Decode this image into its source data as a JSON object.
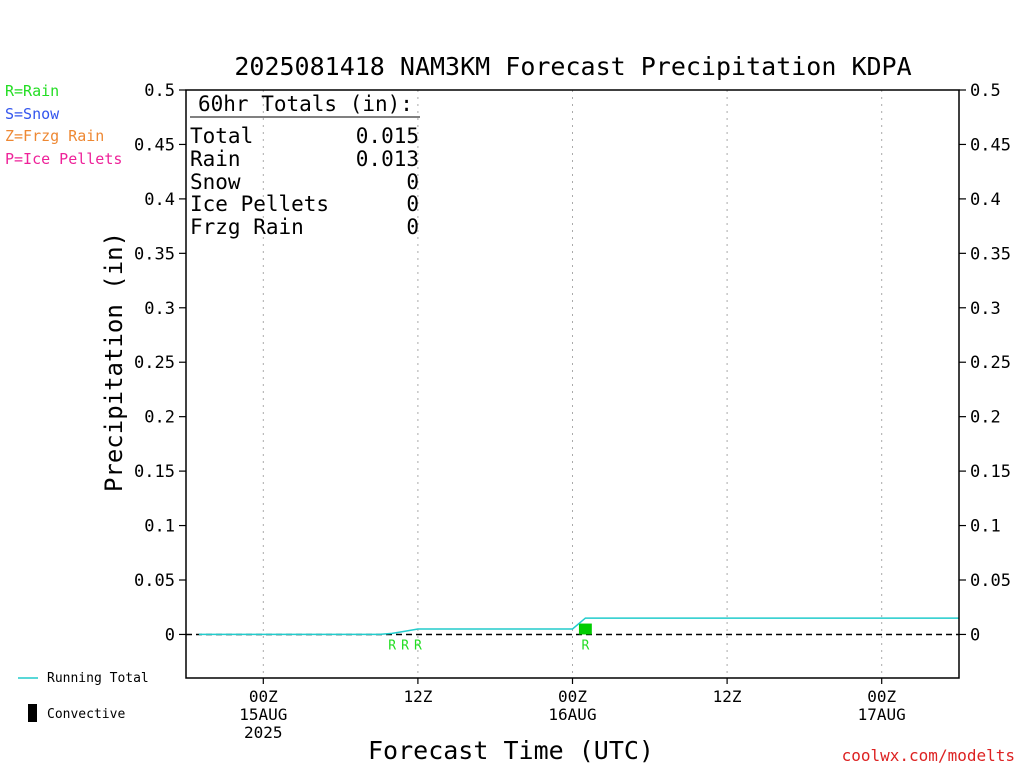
{
  "title": "2025081418 NAM3KM Forecast Precipitation KDPA",
  "legend_types": [
    {
      "label": "R=Rain",
      "color": "#22dd22"
    },
    {
      "label": "S=Snow",
      "color": "#3355ee"
    },
    {
      "label": "Z=Frzg Rain",
      "color": "#ee8833"
    },
    {
      "label": "P=Ice Pellets",
      "color": "#ee2299"
    }
  ],
  "bottom_legend": {
    "running_total": "Running Total",
    "convective": "Convective"
  },
  "totals": {
    "header": "60hr Totals (in):",
    "rows": [
      {
        "label": "Total",
        "value": "0.015"
      },
      {
        "label": "Rain",
        "value": "0.013"
      },
      {
        "label": "Snow",
        "value": "0"
      },
      {
        "label": "Ice Pellets",
        "value": "0"
      },
      {
        "label": "Frzg Rain",
        "value": "0"
      }
    ]
  },
  "credit": "coolwx.com/modelts",
  "colors": {
    "running_total": "#22cccc",
    "rain": "#00cc00",
    "axis": "#000000",
    "grid": "#aaaaaa",
    "credit": "#dd2222"
  },
  "chart_data": {
    "type": "line",
    "title": "2025081418 NAM3KM Forecast Precipitation KDPA",
    "xlabel": "Forecast Time (UTC)",
    "ylabel": "Precipitation (in)",
    "ylim": [
      -0.04,
      0.5
    ],
    "xlim": [
      "2025-08-14T18:00Z",
      "2025-08-17T06:00Z"
    ],
    "yticks": [
      "0.5",
      "0.45",
      "0.4",
      "0.35",
      "0.3",
      "0.25",
      "0.2",
      "0.15",
      "0.1",
      "0.05",
      "0"
    ],
    "xticks": [
      {
        "time": "2025-08-15T00:00Z",
        "lines": [
          "00Z",
          "15AUG",
          "2025"
        ]
      },
      {
        "time": "2025-08-15T12:00Z",
        "lines": [
          "12Z"
        ]
      },
      {
        "time": "2025-08-16T00:00Z",
        "lines": [
          "00Z",
          "16AUG"
        ]
      },
      {
        "time": "2025-08-16T12:00Z",
        "lines": [
          "12Z"
        ]
      },
      {
        "time": "2025-08-17T00:00Z",
        "lines": [
          "00Z",
          "17AUG"
        ]
      }
    ],
    "grid": true,
    "series": [
      {
        "name": "Running Total",
        "x": [
          "2025-08-14T19:00Z",
          "2025-08-15T09:00Z",
          "2025-08-15T10:00Z",
          "2025-08-15T11:00Z",
          "2025-08-15T12:00Z",
          "2025-08-16T00:00Z",
          "2025-08-16T01:00Z",
          "2025-08-16T12:00Z",
          "2025-08-17T06:00Z"
        ],
        "values": [
          0,
          0,
          0.001,
          0.003,
          0.005,
          0.005,
          0.015,
          0.015,
          0.015
        ]
      }
    ],
    "bars": [
      {
        "time": "2025-08-16T01:00Z",
        "value": 0.01
      }
    ],
    "type_markers": [
      {
        "time": "2025-08-15T10:00Z",
        "label": "R"
      },
      {
        "time": "2025-08-15T11:00Z",
        "label": "R"
      },
      {
        "time": "2025-08-15T12:00Z",
        "label": "R"
      },
      {
        "time": "2025-08-16T01:00Z",
        "label": "R"
      }
    ]
  }
}
